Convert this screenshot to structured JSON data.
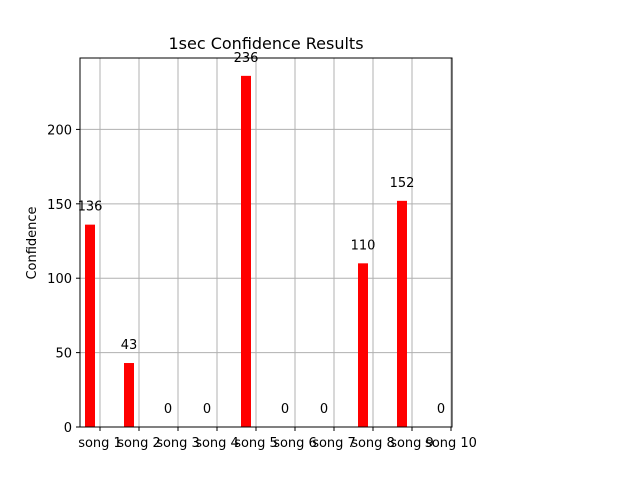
{
  "chart_data": {
    "type": "bar",
    "title": "1sec Confidence Results",
    "xlabel": "",
    "ylabel": "Confidence",
    "categories": [
      "song 1",
      "song 2",
      "song 3",
      "song 4",
      "song 5",
      "song 6",
      "song 7",
      "song 8",
      "song 9",
      "song 10"
    ],
    "values": [
      136,
      43,
      0,
      0,
      236,
      0,
      0,
      110,
      152,
      0
    ],
    "data_labels": [
      "136",
      "43",
      "0",
      "0",
      "236",
      "0",
      "0",
      "110",
      "152",
      "0"
    ],
    "yticks": [
      0,
      50,
      100,
      150,
      200
    ],
    "ylim": [
      0,
      248
    ],
    "grid": true,
    "bar_color": "#ff0000",
    "grid_color": "#b0b0b0"
  }
}
